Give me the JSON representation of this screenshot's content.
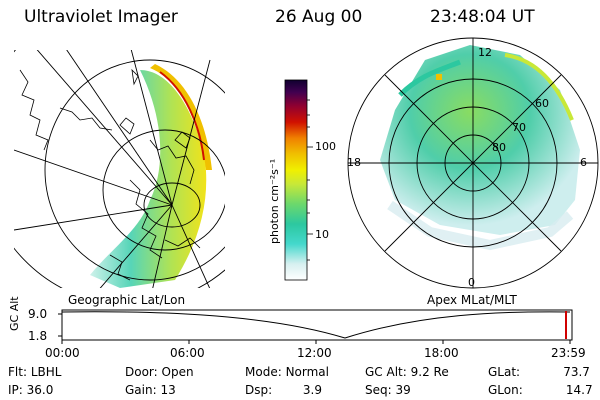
{
  "header": {
    "instrument": "Ultraviolet Imager",
    "date": "26 Aug 00",
    "time": "23:48:04 UT"
  },
  "colorbar": {
    "unit_label": "photon cm⁻²s⁻¹",
    "ticks": [
      "100",
      "10"
    ],
    "colors": [
      "#ffffff",
      "#d7f0f0",
      "#44d8cc",
      "#2cc8a0",
      "#6cd86c",
      "#c8e838",
      "#f0f000",
      "#f0c000",
      "#f08000",
      "#d01000",
      "#900030",
      "#400050",
      "#100030"
    ]
  },
  "left_map": {
    "label": "Geographic Lat/Lon"
  },
  "right_map": {
    "label": "Apex MLat/MLT",
    "mlt_labels": [
      "12",
      "18",
      "6",
      "0"
    ],
    "lat_labels": [
      "60",
      "70",
      "80"
    ]
  },
  "timeline": {
    "ylabel": "GC Alt",
    "y_ticks": [
      "9.0",
      "1.8"
    ],
    "x_ticks": [
      "00:00",
      "06:00",
      "12:00",
      "18:00",
      "23:59"
    ]
  },
  "footer": {
    "rows": [
      [
        {
          "label": "Flt:",
          "value": "LBHL"
        },
        {
          "label": "Door:",
          "value": "Open"
        },
        {
          "label": "Mode:",
          "value": "Normal"
        },
        {
          "label": "GC Alt:",
          "value": "9.2 Re"
        },
        {
          "label": "GLat:",
          "value": "73.7"
        }
      ],
      [
        {
          "label": "IP:",
          "value": "36.0"
        },
        {
          "label": "Gain:",
          "value": "13"
        },
        {
          "label": "Dsp:",
          "value": "3.9"
        },
        {
          "label": "Seq:",
          "value": "39"
        },
        {
          "label": "GLon:",
          "value": "14.7"
        }
      ]
    ]
  }
}
